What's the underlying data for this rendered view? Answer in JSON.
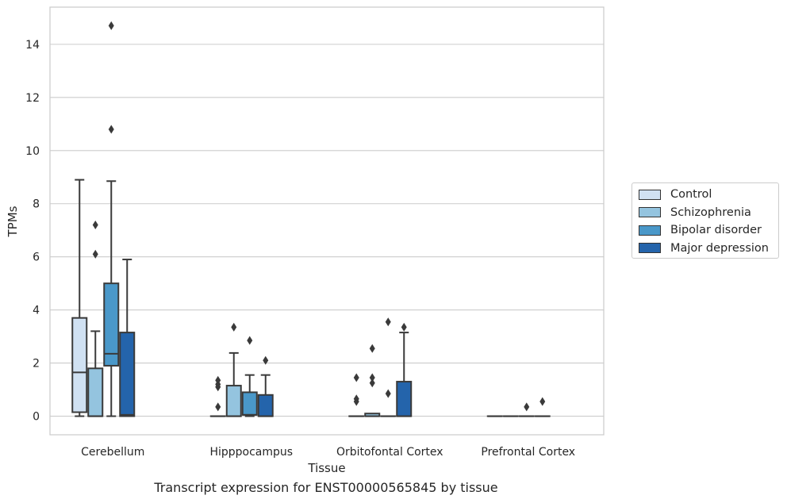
{
  "chart_data": {
    "type": "boxplot",
    "xlabel": "Tissue",
    "ylabel": "TPMs",
    "caption": "Transcript expression for ENST00000565845 by tissue",
    "ylim": [
      -0.7,
      15.4
    ],
    "yticks": [
      0,
      2,
      4,
      6,
      8,
      10,
      12,
      14
    ],
    "grid": "horizontal",
    "legend_placement": "right",
    "categories": [
      "Cerebellum",
      "Hipppocampus",
      "Orbitofontal Cortex",
      "Prefrontal Cortex"
    ],
    "series": [
      {
        "name": "Control",
        "color": "#d0e1f2",
        "boxes": [
          {
            "q1": 0.15,
            "median": 1.65,
            "q3": 3.7,
            "whislo": 0.0,
            "whishi": 8.9,
            "fliers": []
          },
          {
            "q1": 0.0,
            "median": 0.0,
            "q3": 0.0,
            "whislo": 0.0,
            "whishi": 0.0,
            "fliers": [
              0.35,
              1.1,
              1.2,
              1.35
            ]
          },
          {
            "q1": 0.0,
            "median": 0.0,
            "q3": 0.0,
            "whislo": 0.0,
            "whishi": 0.0,
            "fliers": [
              0.55,
              0.65,
              1.45
            ]
          },
          {
            "q1": 0.0,
            "median": 0.0,
            "q3": 0.0,
            "whislo": 0.0,
            "whishi": 0.0,
            "fliers": []
          }
        ]
      },
      {
        "name": "Schizophrenia",
        "color": "#94c4df",
        "boxes": [
          {
            "q1": 0.0,
            "median": 0.0,
            "q3": 1.8,
            "whislo": 0.0,
            "whishi": 3.2,
            "fliers": [
              6.1,
              7.2
            ]
          },
          {
            "q1": 0.0,
            "median": 0.0,
            "q3": 1.15,
            "whislo": 0.0,
            "whishi": 2.38,
            "fliers": [
              3.35
            ]
          },
          {
            "q1": 0.0,
            "median": 0.0,
            "q3": 0.1,
            "whislo": 0.0,
            "whishi": 0.1,
            "fliers": [
              1.25,
              1.45,
              2.55
            ]
          },
          {
            "q1": 0.0,
            "median": 0.0,
            "q3": 0.0,
            "whislo": 0.0,
            "whishi": 0.0,
            "fliers": []
          }
        ]
      },
      {
        "name": "Bipolar disorder",
        "color": "#4a98c9",
        "boxes": [
          {
            "q1": 1.9,
            "median": 2.35,
            "q3": 5.0,
            "whislo": 0.0,
            "whishi": 8.85,
            "fliers": [
              10.8,
              14.7
            ]
          },
          {
            "q1": 0.05,
            "median": 0.05,
            "q3": 0.9,
            "whislo": 0.0,
            "whishi": 1.55,
            "fliers": [
              2.85
            ]
          },
          {
            "q1": 0.0,
            "median": 0.0,
            "q3": 0.0,
            "whislo": 0.0,
            "whishi": 0.0,
            "fliers": [
              0.85,
              3.55
            ]
          },
          {
            "q1": 0.0,
            "median": 0.0,
            "q3": 0.0,
            "whislo": 0.0,
            "whishi": 0.0,
            "fliers": [
              0.35
            ]
          }
        ]
      },
      {
        "name": "Major depression",
        "color": "#2464ab",
        "boxes": [
          {
            "q1": 0.0,
            "median": 0.05,
            "q3": 3.15,
            "whislo": 0.0,
            "whishi": 5.9,
            "fliers": []
          },
          {
            "q1": 0.0,
            "median": 0.0,
            "q3": 0.8,
            "whislo": 0.0,
            "whishi": 1.55,
            "fliers": [
              2.1
            ]
          },
          {
            "q1": 0.0,
            "median": 0.0,
            "q3": 1.3,
            "whislo": 0.0,
            "whishi": 3.15,
            "fliers": [
              3.35
            ]
          },
          {
            "q1": 0.0,
            "median": 0.0,
            "q3": 0.0,
            "whislo": 0.0,
            "whishi": 0.0,
            "fliers": [
              0.55
            ]
          }
        ]
      }
    ]
  }
}
